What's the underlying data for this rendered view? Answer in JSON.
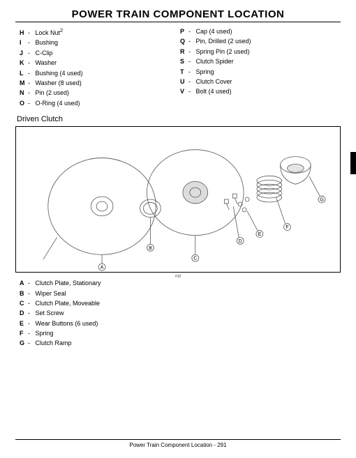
{
  "title": "POWER TRAIN   COMPONENT LOCATION",
  "top_legend_left": [
    {
      "l": "H",
      "t": "Lock Nut",
      "sup": "2"
    },
    {
      "l": "I",
      "t": "Bushing"
    },
    {
      "l": "J",
      "t": "C-Clip"
    },
    {
      "l": "K",
      "t": "Washer"
    },
    {
      "l": "L",
      "t": "Bushing (4 used)"
    },
    {
      "l": "M",
      "t": "Washer (8 used)"
    },
    {
      "l": "N",
      "t": "Pin (2 used)"
    },
    {
      "l": "O",
      "t": "O-Ring (4 used)"
    }
  ],
  "top_legend_right": [
    {
      "l": "P",
      "t": "Cap (4 used)"
    },
    {
      "l": "Q",
      "t": "Pin, Drilled (2 used)"
    },
    {
      "l": "R",
      "t": "Spring Pin (2 used)"
    },
    {
      "l": "S",
      "t": "Clutch Spider"
    },
    {
      "l": "T",
      "t": "Spring"
    },
    {
      "l": "U",
      "t": "Clutch Cover"
    },
    {
      "l": "V",
      "t": "Bolt (4 used)"
    }
  ],
  "section_label": "Driven Clutch",
  "diagram_caption": "mif",
  "bottom_legend": [
    {
      "l": "A",
      "t": "Clutch Plate, Stationary"
    },
    {
      "l": "B",
      "t": "Wiper Seal"
    },
    {
      "l": "C",
      "t": "Clutch Plate, Moveable"
    },
    {
      "l": "D",
      "t": "Set Screw"
    },
    {
      "l": "E",
      "t": "Wear Buttons (6 used)"
    },
    {
      "l": "F",
      "t": "Spring"
    },
    {
      "l": "G",
      "t": "Clutch Ramp"
    }
  ],
  "callouts_in_figure": [
    "A",
    "B",
    "C",
    "D",
    "E",
    "F",
    "G"
  ],
  "colors": {
    "line": "#555",
    "fill": "#fff",
    "shade": "#ccc"
  },
  "footer": "Power Train   Component Location  - 291"
}
